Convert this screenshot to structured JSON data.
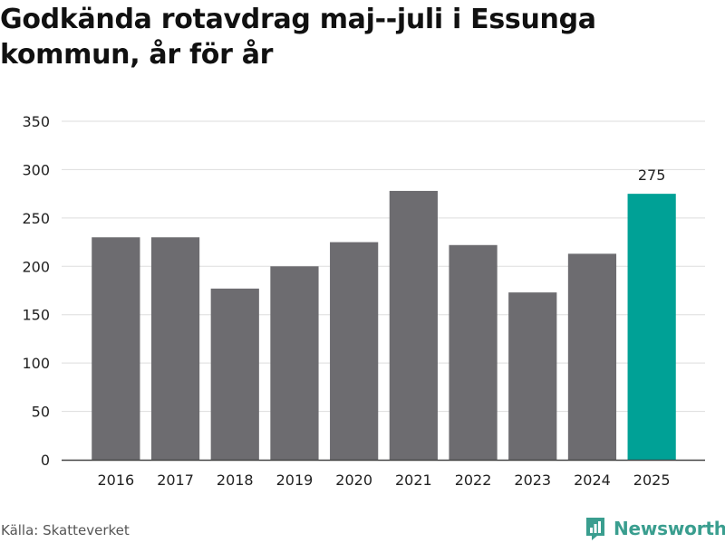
{
  "title": "Godkända rotavdrag maj--juli i Essunga kommun, år för år",
  "source": "Källa: Skatteverket",
  "brand": {
    "name": "Newsworthy",
    "icon": "newsworthy-logo-icon",
    "color": "#3a9e8f"
  },
  "colors": {
    "bar_default": "#6d6c70",
    "bar_highlight": "#00a196",
    "grid": "#dddddd",
    "axis": "#444444"
  },
  "chart_data": {
    "type": "bar",
    "title": "Godkända rotavdrag maj--juli i Essunga kommun, år för år",
    "xlabel": "",
    "ylabel": "",
    "categories": [
      "2016",
      "2017",
      "2018",
      "2019",
      "2020",
      "2021",
      "2022",
      "2023",
      "2024",
      "2025"
    ],
    "values": [
      230,
      230,
      177,
      200,
      225,
      278,
      222,
      173,
      213,
      275
    ],
    "highlight_index": 9,
    "value_labels": [
      {
        "index": 9,
        "text": "275"
      }
    ],
    "ylim": [
      0,
      350
    ],
    "yticks": [
      0,
      50,
      100,
      150,
      200,
      250,
      300,
      350
    ],
    "grid": true,
    "legend": "none"
  }
}
